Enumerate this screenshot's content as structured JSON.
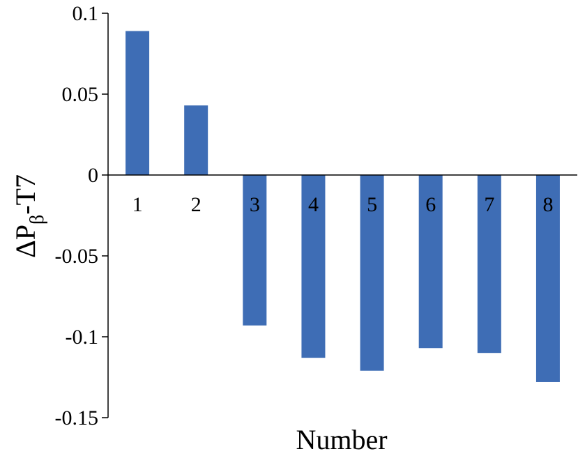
{
  "chart_data": {
    "type": "bar",
    "categories": [
      "1",
      "2",
      "3",
      "4",
      "5",
      "6",
      "7",
      "8"
    ],
    "values": [
      0.089,
      0.043,
      -0.093,
      -0.113,
      -0.121,
      -0.107,
      -0.11,
      -0.128
    ],
    "title": "",
    "xlabel": "Number",
    "ylabel_main": "ΔP",
    "ylabel_sub": "β",
    "ylabel_suffix": "-T7",
    "ylim": [
      -0.15,
      0.1
    ],
    "yticks": [
      0.1,
      0.05,
      0,
      -0.05,
      -0.1,
      -0.15
    ],
    "ytick_labels": [
      "0.1",
      "0.05",
      "0",
      "-0.05",
      "-0.1",
      "-0.15"
    ],
    "grid": false,
    "legend": "none",
    "bar_color": "#3E6DB5"
  }
}
